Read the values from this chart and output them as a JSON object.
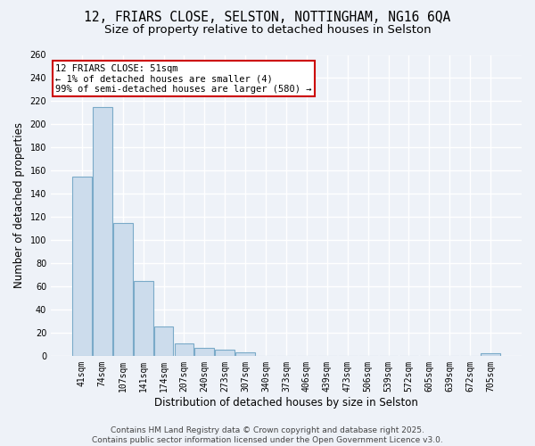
{
  "title_line1": "12, FRIARS CLOSE, SELSTON, NOTTINGHAM, NG16 6QA",
  "title_line2": "Size of property relative to detached houses in Selston",
  "xlabel": "Distribution of detached houses by size in Selston",
  "ylabel": "Number of detached properties",
  "categories": [
    "41sqm",
    "74sqm",
    "107sqm",
    "141sqm",
    "174sqm",
    "207sqm",
    "240sqm",
    "273sqm",
    "307sqm",
    "340sqm",
    "373sqm",
    "406sqm",
    "439sqm",
    "473sqm",
    "506sqm",
    "539sqm",
    "572sqm",
    "605sqm",
    "639sqm",
    "672sqm",
    "705sqm"
  ],
  "values": [
    155,
    215,
    115,
    65,
    25,
    11,
    7,
    5,
    3,
    0,
    0,
    0,
    0,
    0,
    0,
    0,
    0,
    0,
    0,
    0,
    2
  ],
  "bar_color": "#ccdcec",
  "bar_edge_color": "#7aaac8",
  "background_color": "#eef2f8",
  "grid_color": "#ffffff",
  "annotation_text": "12 FRIARS CLOSE: 51sqm\n← 1% of detached houses are smaller (4)\n99% of semi-detached houses are larger (580) →",
  "annotation_box_color": "#ffffff",
  "annotation_edge_color": "#cc0000",
  "footer_text": "Contains HM Land Registry data © Crown copyright and database right 2025.\nContains public sector information licensed under the Open Government Licence v3.0.",
  "ylim": [
    0,
    260
  ],
  "yticks": [
    0,
    20,
    40,
    60,
    80,
    100,
    120,
    140,
    160,
    180,
    200,
    220,
    240,
    260
  ],
  "title_fontsize": 10.5,
  "subtitle_fontsize": 9.5,
  "axis_label_fontsize": 8.5,
  "tick_fontsize": 7,
  "annotation_fontsize": 7.5,
  "footer_fontsize": 6.5
}
